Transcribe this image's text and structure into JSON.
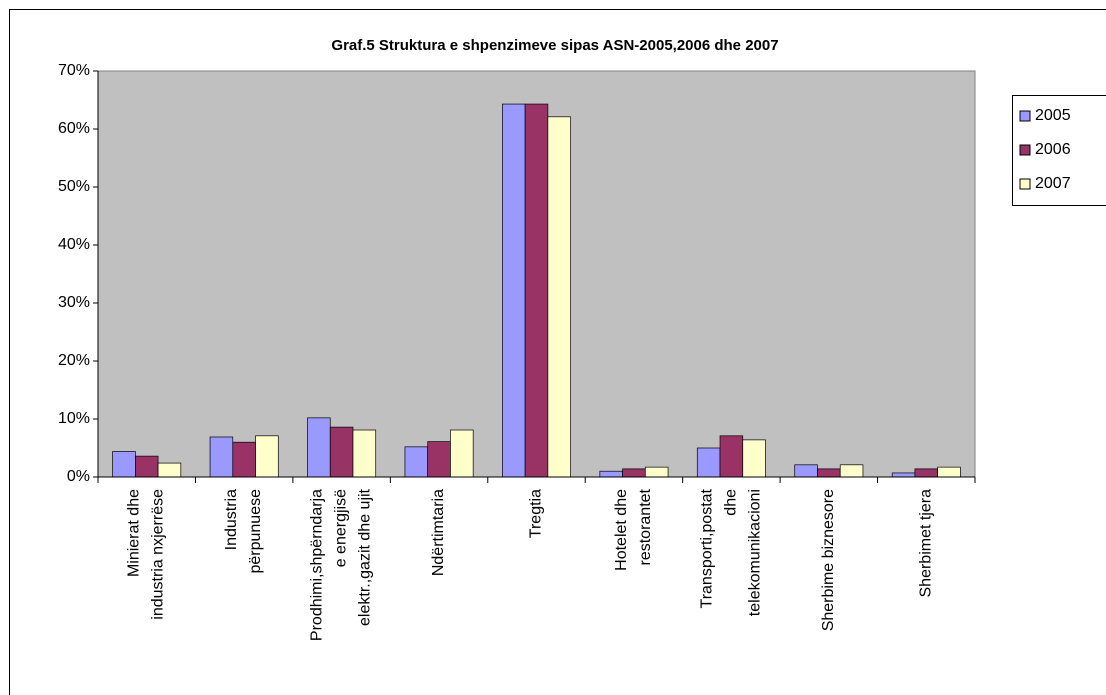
{
  "chart_data": {
    "type": "bar",
    "title": "Graf.5 Struktura e shpenzimeve sipas ASN-2005,2006 dhe 2007",
    "categories": [
      "Minierat dhe\nindustria nxjerrëse",
      "Industria\npërpunuese",
      "Prodhimi,shpërndarja\ne energjisë\nelektr.,gazit dhe ujit",
      "Ndërtimtaria",
      "Tregtia",
      "Hotelet dhe\nrestorantet",
      "Transporti,postat\ndhe\ntelekomunikacioni",
      "Sherbime biznesore",
      "Sherbimet tjera"
    ],
    "series": [
      {
        "name": "2005",
        "color": "#9999ff",
        "values": [
          4.4,
          6.9,
          10.2,
          5.2,
          64.3,
          1.0,
          5.0,
          2.1,
          0.7
        ]
      },
      {
        "name": "2006",
        "color": "#993366",
        "values": [
          3.6,
          6.0,
          8.6,
          6.1,
          64.3,
          1.4,
          7.1,
          1.4,
          1.4
        ]
      },
      {
        "name": "2007",
        "color": "#ffffcc",
        "values": [
          2.4,
          7.1,
          8.1,
          8.1,
          62.1,
          1.7,
          6.4,
          2.1,
          1.7
        ]
      }
    ],
    "ylim": [
      0,
      70
    ],
    "yticks": [
      {
        "value": 0,
        "label": "0%"
      },
      {
        "value": 10,
        "label": "10%"
      },
      {
        "value": 20,
        "label": "20%"
      },
      {
        "value": 30,
        "label": "30%"
      },
      {
        "value": 40,
        "label": "40%"
      },
      {
        "value": 50,
        "label": "50%"
      },
      {
        "value": 60,
        "label": "60%"
      },
      {
        "value": 70,
        "label": "70%"
      }
    ],
    "grid": false,
    "legend": "right",
    "plot_background": "#c0c0c0"
  }
}
